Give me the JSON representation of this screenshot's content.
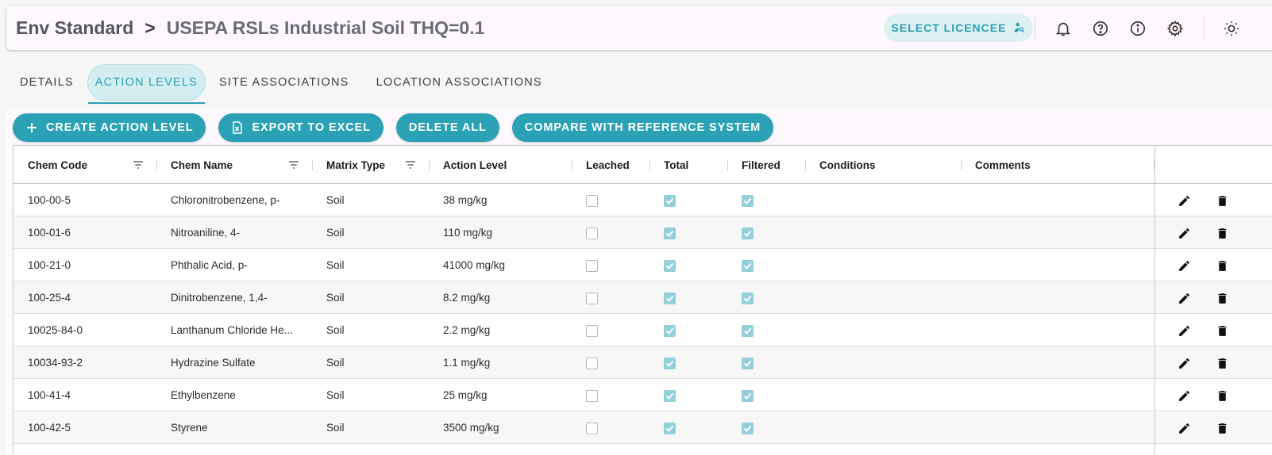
{
  "header": {
    "breadcrumb_root": "Env Standard",
    "breadcrumb_sep": ">",
    "breadcrumb_current": "USEPA RSLs Industrial Soil THQ=0.1",
    "licencee_button": "SELECT LICENCEE"
  },
  "tabs": [
    "DETAILS",
    "ACTION LEVELS",
    "SITE ASSOCIATIONS",
    "LOCATION ASSOCIATIONS"
  ],
  "active_tab": "ACTION LEVELS",
  "toolbar": {
    "create": "CREATE ACTION LEVEL",
    "export": "EXPORT TO EXCEL",
    "delete_all": "DELETE ALL",
    "compare": "COMPARE WITH REFERENCE SYSTEM"
  },
  "columns": {
    "chem_code": "Chem Code",
    "chem_name": "Chem Name",
    "matrix_type": "Matrix Type",
    "action_level": "Action Level",
    "leached": "Leached",
    "total": "Total",
    "filtered": "Filtered",
    "conditions": "Conditions",
    "comments": "Comments"
  },
  "rows": [
    {
      "code": "100-00-5",
      "name": "Chloronitrobenzene, p-",
      "matrix": "Soil",
      "level": "38 mg/kg",
      "leached": false,
      "total": true,
      "filtered": true
    },
    {
      "code": "100-01-6",
      "name": "Nitroaniline, 4-",
      "matrix": "Soil",
      "level": "110 mg/kg",
      "leached": false,
      "total": true,
      "filtered": true
    },
    {
      "code": "100-21-0",
      "name": "Phthalic Acid, p-",
      "matrix": "Soil",
      "level": "41000 mg/kg",
      "leached": false,
      "total": true,
      "filtered": true
    },
    {
      "code": "100-25-4",
      "name": "Dinitrobenzene, 1,4-",
      "matrix": "Soil",
      "level": "8.2 mg/kg",
      "leached": false,
      "total": true,
      "filtered": true
    },
    {
      "code": "10025-84-0",
      "name": "Lanthanum Chloride He...",
      "matrix": "Soil",
      "level": "2.2 mg/kg",
      "leached": false,
      "total": true,
      "filtered": true
    },
    {
      "code": "10034-93-2",
      "name": "Hydrazine Sulfate",
      "matrix": "Soil",
      "level": "1.1 mg/kg",
      "leached": false,
      "total": true,
      "filtered": true
    },
    {
      "code": "100-41-4",
      "name": "Ethylbenzene",
      "matrix": "Soil",
      "level": "25 mg/kg",
      "leached": false,
      "total": true,
      "filtered": true
    },
    {
      "code": "100-42-5",
      "name": "Styrene",
      "matrix": "Soil",
      "level": "3500 mg/kg",
      "leached": false,
      "total": true,
      "filtered": true
    }
  ],
  "colors": {
    "accent": "#2aa1b4",
    "accent_light": "#d3edf1",
    "checkbox_checked": "#93d0db"
  }
}
